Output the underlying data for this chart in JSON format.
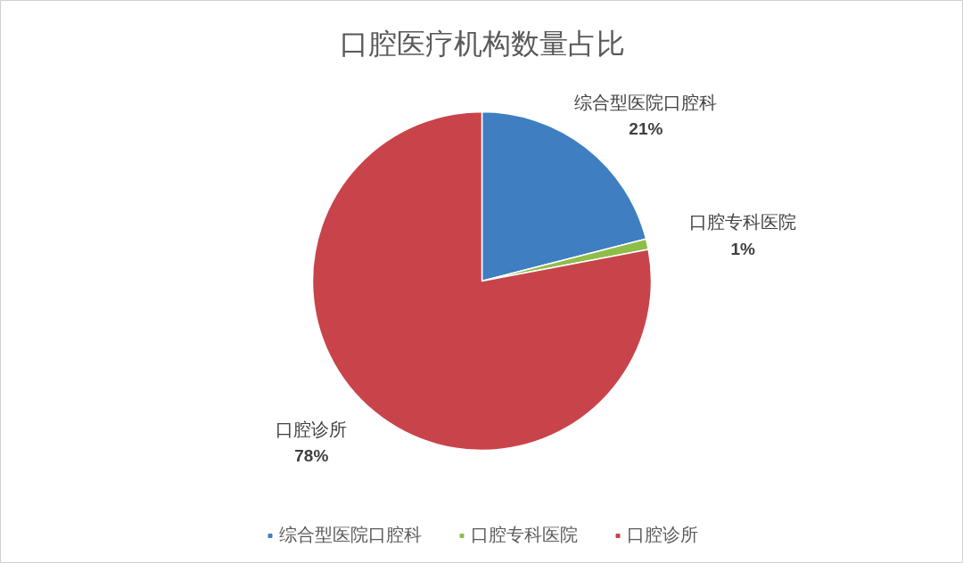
{
  "chart_data": {
    "type": "pie",
    "title": "口腔医疗机构数量占比",
    "categories": [
      "综合型医院口腔科",
      "口腔专科医院",
      "口腔诊所"
    ],
    "values": [
      21,
      1,
      78
    ],
    "colors": [
      "#3e7ec1",
      "#8ebd48",
      "#c9444a"
    ],
    "value_labels": [
      "21%",
      "1%",
      "78%"
    ],
    "legend": "bottom"
  }
}
